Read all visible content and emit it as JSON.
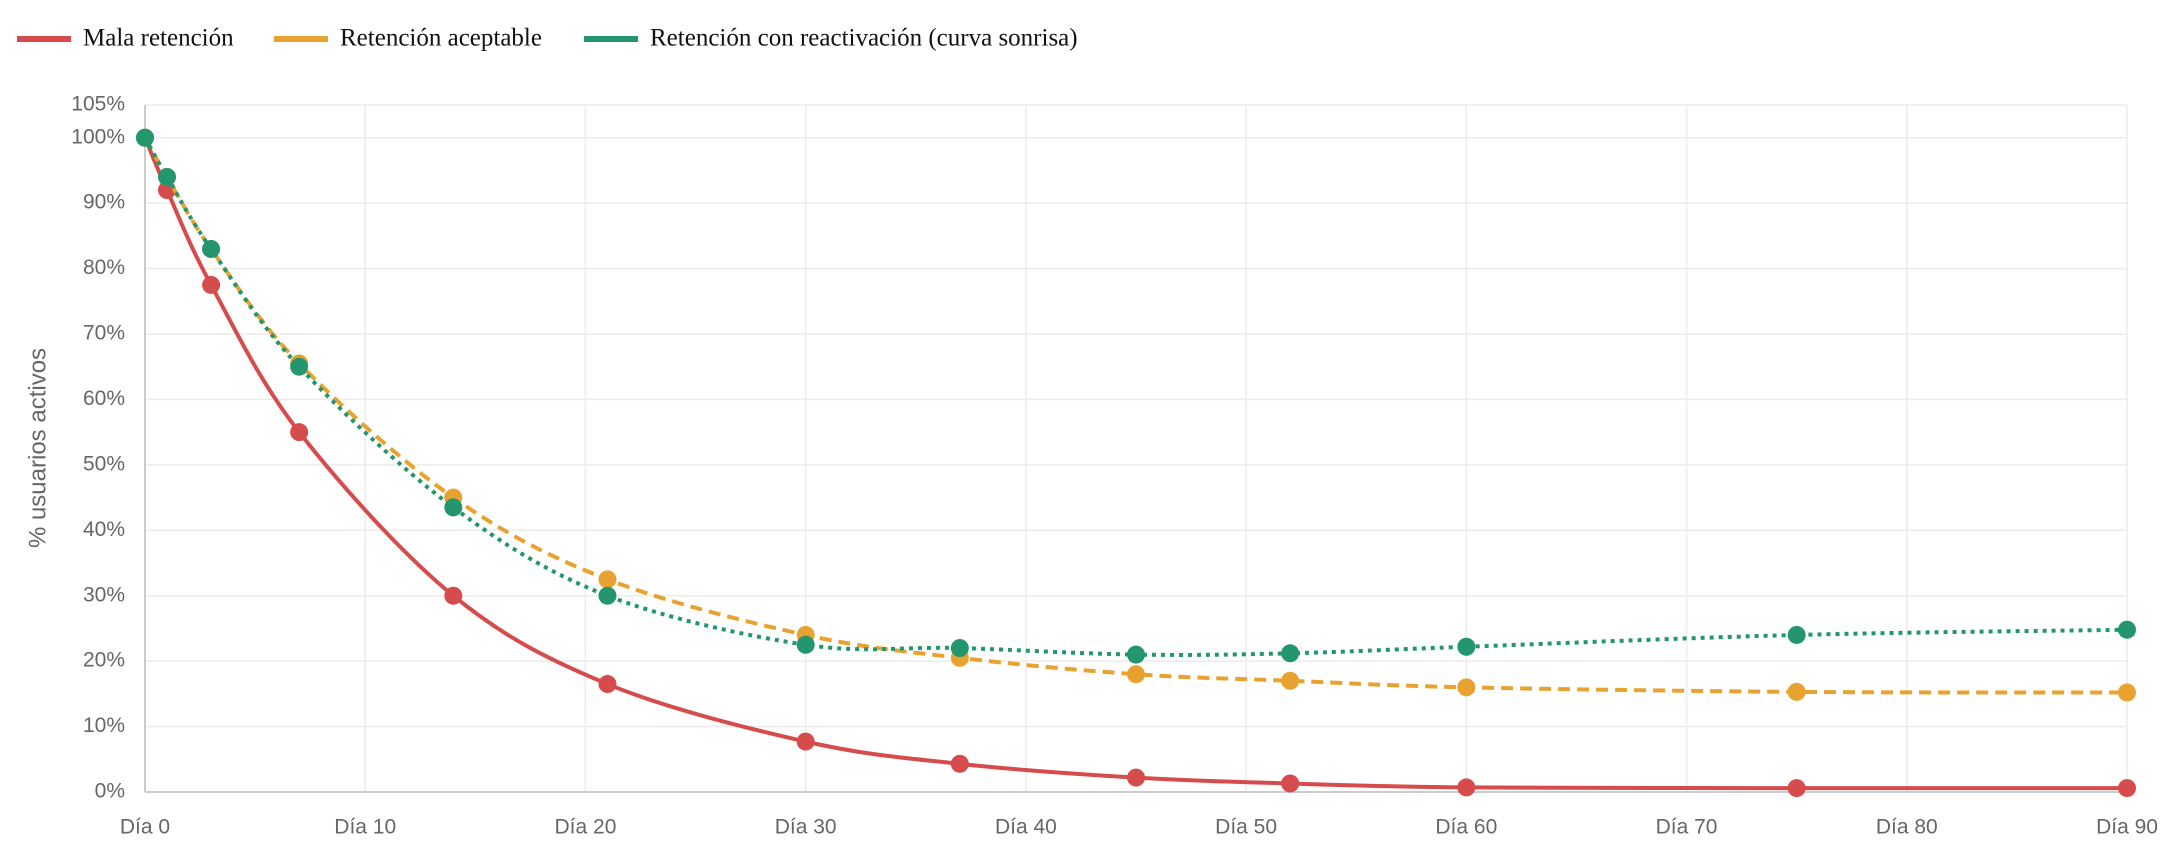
{
  "chart_data": {
    "type": "line",
    "y_label": "% usuarios activos",
    "x": [
      0,
      1,
      3,
      7,
      14,
      21,
      30,
      37,
      45,
      52,
      60,
      75,
      90
    ],
    "series": [
      {
        "name": "Mala retención",
        "color": "#d64b4b",
        "line_style": "solid",
        "values": [
          100,
          92,
          77.5,
          55,
          30,
          16.5,
          7.7,
          4.3,
          2.2,
          1.3,
          0.7,
          0.6,
          0.6
        ]
      },
      {
        "name": "Retención aceptable",
        "color": "#e8a22f",
        "line_style": "dashed",
        "values": [
          100,
          94,
          83,
          65.5,
          45,
          32.5,
          24,
          20.5,
          18,
          17,
          16,
          15.3,
          15.2
        ]
      },
      {
        "name": "Retención con reactivación (curva sonrisa)",
        "color": "#23966e",
        "line_style": "dotted",
        "values": [
          100,
          94,
          83,
          65,
          43.5,
          30,
          22.5,
          22,
          21,
          21.2,
          22.2,
          24,
          24.8
        ]
      }
    ],
    "xlim": [
      0,
      90
    ],
    "xticks": [
      {
        "value": 0,
        "label": "Día 0"
      },
      {
        "value": 10,
        "label": "Día 10"
      },
      {
        "value": 20,
        "label": "Día 20"
      },
      {
        "value": 30,
        "label": "Día 30"
      },
      {
        "value": 40,
        "label": "Día 40"
      },
      {
        "value": 50,
        "label": "Día 50"
      },
      {
        "value": 60,
        "label": "Día 60"
      },
      {
        "value": 70,
        "label": "Día 70"
      },
      {
        "value": 80,
        "label": "Día 80"
      },
      {
        "value": 90,
        "label": "Día 90"
      }
    ],
    "ylim": [
      0,
      105
    ],
    "yticks": [
      {
        "value": 0,
        "label": "0%"
      },
      {
        "value": 10,
        "label": "10%"
      },
      {
        "value": 20,
        "label": "20%"
      },
      {
        "value": 30,
        "label": "30%"
      },
      {
        "value": 40,
        "label": "40%"
      },
      {
        "value": 50,
        "label": "50%"
      },
      {
        "value": 60,
        "label": "60%"
      },
      {
        "value": 70,
        "label": "70%"
      },
      {
        "value": 80,
        "label": "80%"
      },
      {
        "value": 90,
        "label": "90%"
      },
      {
        "value": 100,
        "label": "100%"
      },
      {
        "value": 105,
        "label": "105%"
      }
    ],
    "grid": true,
    "legend": "top-left"
  }
}
